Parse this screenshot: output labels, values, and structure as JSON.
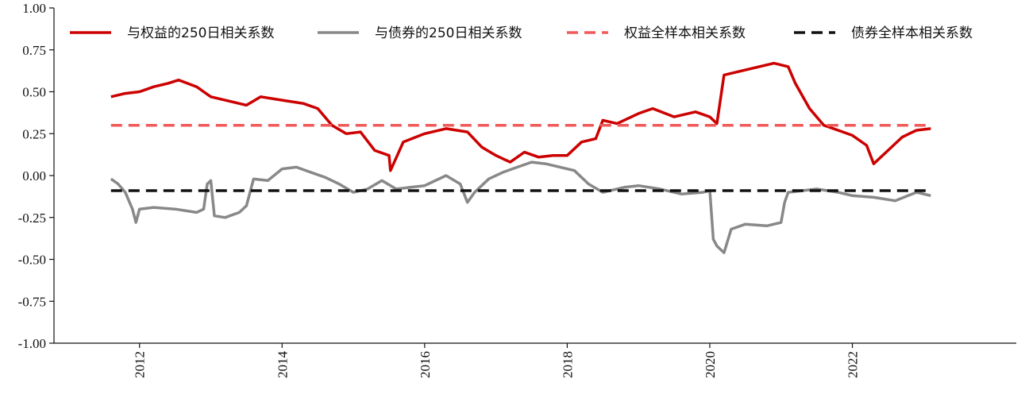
{
  "chart_data": {
    "type": "line",
    "title": "",
    "xlabel": "",
    "ylabel": "",
    "ylim": [
      -1.0,
      1.0
    ],
    "xlim": [
      2010.8,
      2024.3
    ],
    "grid": false,
    "legend_position": "top",
    "y_ticks": [
      "1.00",
      "0.75",
      "0.50",
      "0.25",
      "0.00",
      "-0.25",
      "-0.50",
      "-0.75",
      "-1.00"
    ],
    "x_ticks": [
      "2012",
      "2014",
      "2016",
      "2018",
      "2020",
      "2022"
    ],
    "series": [
      {
        "name": "与权益的250日相关系数",
        "color": "#cc0000",
        "style": "solid",
        "x": [
          2011.6,
          2011.8,
          2012.0,
          2012.2,
          2012.4,
          2012.55,
          2012.8,
          2013.0,
          2013.2,
          2013.5,
          2013.7,
          2014.0,
          2014.3,
          2014.5,
          2014.7,
          2014.9,
          2015.1,
          2015.3,
          2015.5,
          2015.52,
          2015.7,
          2016.0,
          2016.3,
          2016.6,
          2016.8,
          2017.0,
          2017.2,
          2017.4,
          2017.6,
          2017.8,
          2018.0,
          2018.2,
          2018.4,
          2018.5,
          2018.7,
          2019.0,
          2019.2,
          2019.5,
          2019.8,
          2020.0,
          2020.1,
          2020.2,
          2020.5,
          2020.9,
          2021.1,
          2021.2,
          2021.4,
          2021.6,
          2021.8,
          2022.0,
          2022.2,
          2022.3,
          2022.5,
          2022.7,
          2022.9,
          2023.1
        ],
        "values": [
          0.47,
          0.49,
          0.5,
          0.53,
          0.55,
          0.57,
          0.53,
          0.47,
          0.45,
          0.42,
          0.47,
          0.45,
          0.43,
          0.4,
          0.3,
          0.25,
          0.26,
          0.15,
          0.12,
          0.03,
          0.2,
          0.25,
          0.28,
          0.26,
          0.17,
          0.12,
          0.08,
          0.14,
          0.11,
          0.12,
          0.12,
          0.2,
          0.22,
          0.33,
          0.31,
          0.37,
          0.4,
          0.35,
          0.38,
          0.35,
          0.31,
          0.6,
          0.63,
          0.67,
          0.65,
          0.55,
          0.4,
          0.3,
          0.27,
          0.24,
          0.18,
          0.07,
          0.15,
          0.23,
          0.27,
          0.28
        ]
      },
      {
        "name": "与债券的250日相关系数",
        "color": "#888888",
        "style": "solid",
        "x": [
          2011.6,
          2011.7,
          2011.8,
          2011.9,
          2011.95,
          2012.0,
          2012.2,
          2012.5,
          2012.8,
          2012.9,
          2012.95,
          2013.0,
          2013.05,
          2013.2,
          2013.4,
          2013.5,
          2013.6,
          2013.8,
          2014.0,
          2014.2,
          2014.4,
          2014.6,
          2014.8,
          2015.0,
          2015.2,
          2015.4,
          2015.6,
          2015.8,
          2016.0,
          2016.3,
          2016.5,
          2016.6,
          2016.7,
          2016.9,
          2017.1,
          2017.3,
          2017.5,
          2017.7,
          2017.9,
          2018.1,
          2018.3,
          2018.5,
          2018.8,
          2019.0,
          2019.3,
          2019.6,
          2019.9,
          2020.0,
          2020.05,
          2020.1,
          2020.2,
          2020.3,
          2020.5,
          2020.8,
          2021.0,
          2021.05,
          2021.1,
          2021.3,
          2021.5,
          2021.8,
          2022.0,
          2022.3,
          2022.6,
          2022.9,
          2023.1
        ],
        "values": [
          -0.02,
          -0.05,
          -0.1,
          -0.2,
          -0.28,
          -0.2,
          -0.19,
          -0.2,
          -0.22,
          -0.2,
          -0.05,
          -0.03,
          -0.24,
          -0.25,
          -0.22,
          -0.18,
          -0.02,
          -0.03,
          0.04,
          0.05,
          0.02,
          -0.01,
          -0.05,
          -0.1,
          -0.08,
          -0.03,
          -0.08,
          -0.07,
          -0.06,
          0.0,
          -0.05,
          -0.16,
          -0.1,
          -0.02,
          0.02,
          0.05,
          0.08,
          0.07,
          0.05,
          0.03,
          -0.05,
          -0.1,
          -0.07,
          -0.06,
          -0.08,
          -0.11,
          -0.1,
          -0.09,
          -0.38,
          -0.42,
          -0.46,
          -0.32,
          -0.29,
          -0.3,
          -0.28,
          -0.16,
          -0.1,
          -0.09,
          -0.08,
          -0.1,
          -0.12,
          -0.13,
          -0.15,
          -0.1,
          -0.12
        ]
      },
      {
        "name": "权益全样本相关系数",
        "color": "#f05a5a",
        "style": "dashed",
        "x": [
          2011.6,
          2023.1
        ],
        "values": [
          0.3,
          0.3
        ]
      },
      {
        "name": "债券全样本相关系数",
        "color": "#111111",
        "style": "dashed",
        "x": [
          2011.6,
          2023.1
        ],
        "values": [
          -0.09,
          -0.09
        ]
      }
    ]
  }
}
